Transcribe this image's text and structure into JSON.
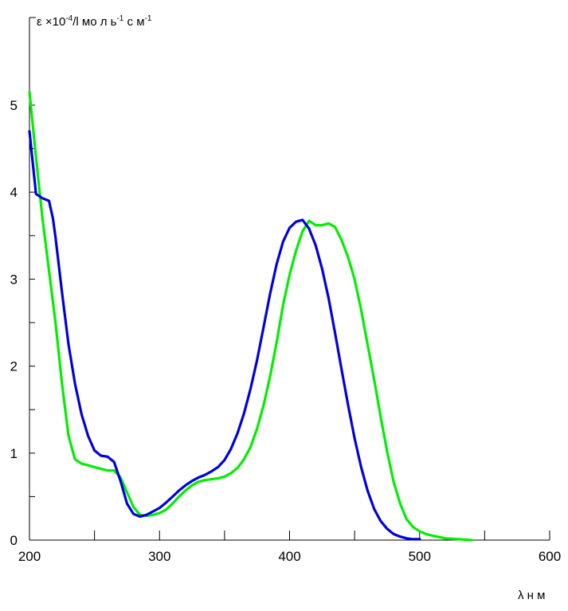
{
  "chart_data": {
    "type": "line",
    "ylabel": {
      "prefix": "ε ×10",
      "exp1": "-4",
      "mid": "/l мо л ь",
      "exp2": "-1",
      "mid2": " с м",
      "exp3": "-1"
    },
    "xlabel": "λ н м",
    "xlim": [
      200,
      600
    ],
    "ylim": [
      0,
      5.2
    ],
    "x_ticks": [
      200,
      300,
      400,
      500,
      600
    ],
    "x_tick_labels": [
      "200",
      "300",
      "400",
      "500",
      "600"
    ],
    "y_ticks": [
      0,
      1,
      2,
      3,
      4,
      5
    ],
    "y_tick_labels": [
      "0",
      "1",
      "2",
      "3",
      "4",
      "5"
    ],
    "grid": false,
    "series": [
      {
        "color": "#00ee00",
        "points": [
          [
            200,
            5.15
          ],
          [
            205,
            4.4
          ],
          [
            210,
            3.7
          ],
          [
            215,
            3.1
          ],
          [
            220,
            2.5
          ],
          [
            225,
            1.8
          ],
          [
            230,
            1.2
          ],
          [
            235,
            0.93
          ],
          [
            240,
            0.88
          ],
          [
            245,
            0.86
          ],
          [
            250,
            0.84
          ],
          [
            255,
            0.82
          ],
          [
            260,
            0.8
          ],
          [
            265,
            0.8
          ],
          [
            270,
            0.72
          ],
          [
            275,
            0.55
          ],
          [
            280,
            0.38
          ],
          [
            285,
            0.29
          ],
          [
            290,
            0.28
          ],
          [
            295,
            0.29
          ],
          [
            300,
            0.31
          ],
          [
            305,
            0.35
          ],
          [
            310,
            0.42
          ],
          [
            315,
            0.5
          ],
          [
            320,
            0.57
          ],
          [
            325,
            0.63
          ],
          [
            330,
            0.67
          ],
          [
            335,
            0.69
          ],
          [
            340,
            0.7
          ],
          [
            345,
            0.71
          ],
          [
            350,
            0.73
          ],
          [
            355,
            0.77
          ],
          [
            360,
            0.83
          ],
          [
            365,
            0.93
          ],
          [
            370,
            1.07
          ],
          [
            375,
            1.28
          ],
          [
            380,
            1.55
          ],
          [
            385,
            1.88
          ],
          [
            390,
            2.27
          ],
          [
            395,
            2.7
          ],
          [
            400,
            3.05
          ],
          [
            405,
            3.33
          ],
          [
            410,
            3.55
          ],
          [
            415,
            3.67
          ],
          [
            420,
            3.62
          ],
          [
            425,
            3.62
          ],
          [
            430,
            3.64
          ],
          [
            435,
            3.6
          ],
          [
            440,
            3.45
          ],
          [
            445,
            3.25
          ],
          [
            450,
            3.0
          ],
          [
            455,
            2.65
          ],
          [
            460,
            2.25
          ],
          [
            465,
            1.85
          ],
          [
            470,
            1.42
          ],
          [
            475,
            1.02
          ],
          [
            480,
            0.67
          ],
          [
            485,
            0.42
          ],
          [
            490,
            0.24
          ],
          [
            495,
            0.15
          ],
          [
            500,
            0.1
          ],
          [
            505,
            0.07
          ],
          [
            510,
            0.05
          ],
          [
            520,
            0.02
          ],
          [
            530,
            0.01
          ],
          [
            540,
            0.0
          ]
        ]
      },
      {
        "color": "#0000dd",
        "points": [
          [
            200,
            4.7
          ],
          [
            205,
            3.98
          ],
          [
            210,
            3.93
          ],
          [
            215,
            3.9
          ],
          [
            218,
            3.7
          ],
          [
            220,
            3.48
          ],
          [
            225,
            2.85
          ],
          [
            230,
            2.25
          ],
          [
            235,
            1.8
          ],
          [
            240,
            1.45
          ],
          [
            245,
            1.2
          ],
          [
            250,
            1.03
          ],
          [
            255,
            0.97
          ],
          [
            260,
            0.96
          ],
          [
            265,
            0.9
          ],
          [
            270,
            0.68
          ],
          [
            275,
            0.42
          ],
          [
            280,
            0.3
          ],
          [
            285,
            0.27
          ],
          [
            290,
            0.29
          ],
          [
            295,
            0.33
          ],
          [
            300,
            0.37
          ],
          [
            305,
            0.43
          ],
          [
            310,
            0.5
          ],
          [
            315,
            0.57
          ],
          [
            320,
            0.63
          ],
          [
            325,
            0.68
          ],
          [
            330,
            0.72
          ],
          [
            335,
            0.75
          ],
          [
            340,
            0.79
          ],
          [
            345,
            0.84
          ],
          [
            350,
            0.92
          ],
          [
            355,
            1.05
          ],
          [
            360,
            1.23
          ],
          [
            365,
            1.46
          ],
          [
            370,
            1.74
          ],
          [
            375,
            2.07
          ],
          [
            380,
            2.45
          ],
          [
            385,
            2.83
          ],
          [
            390,
            3.17
          ],
          [
            395,
            3.43
          ],
          [
            400,
            3.59
          ],
          [
            405,
            3.66
          ],
          [
            410,
            3.68
          ],
          [
            413,
            3.62
          ],
          [
            415,
            3.58
          ],
          [
            420,
            3.39
          ],
          [
            425,
            3.12
          ],
          [
            430,
            2.78
          ],
          [
            435,
            2.38
          ],
          [
            440,
            1.96
          ],
          [
            445,
            1.55
          ],
          [
            450,
            1.17
          ],
          [
            455,
            0.84
          ],
          [
            460,
            0.57
          ],
          [
            465,
            0.36
          ],
          [
            470,
            0.22
          ],
          [
            475,
            0.13
          ],
          [
            480,
            0.07
          ],
          [
            485,
            0.04
          ],
          [
            490,
            0.02
          ],
          [
            495,
            0.01
          ],
          [
            500,
            0.01
          ]
        ]
      }
    ]
  }
}
